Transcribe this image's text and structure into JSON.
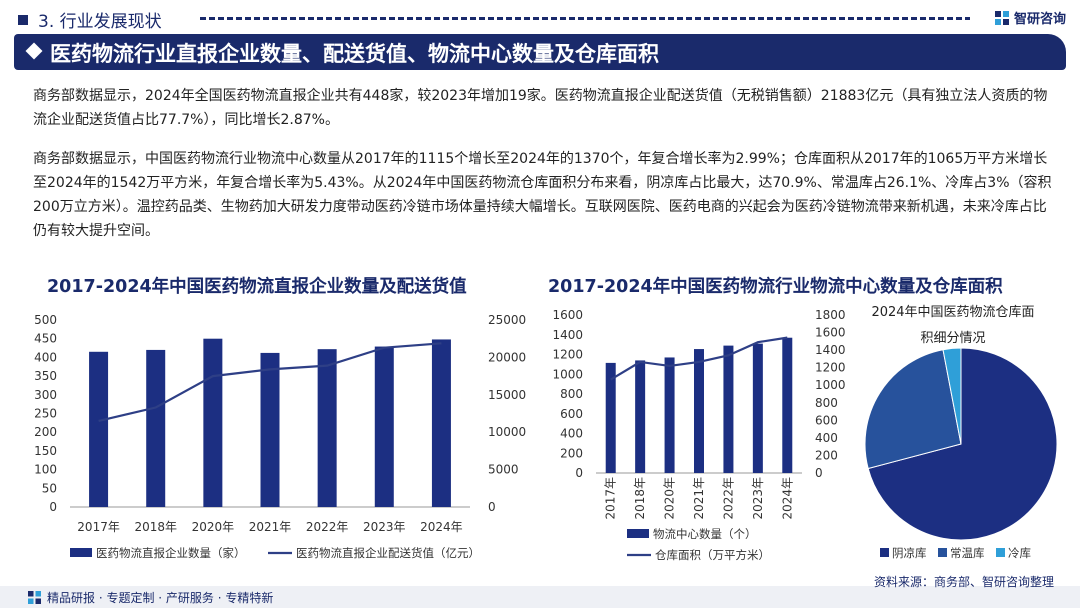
{
  "header": {
    "section_title": "3. 行业发展现状",
    "brand": "智研咨询",
    "banner_title": "医药物流行业直报企业数量、配送货值、物流中心数量及仓库面积"
  },
  "paragraphs": {
    "p1": "商务部数据显示，2024年全国医药物流直报企业共有448家，较2023年增加19家。医药物流直报企业配送货值（无税销售额）21883亿元（具有独立法人资质的物流企业配送货值占比77.7%），同比增长2.87%。",
    "p2": "商务部数据显示，中国医药物流行业物流中心数量从2017年的1115个增长至2024年的1370个，年复合增长率为2.99%；仓库面积从2017年的1065万平方米增长至2024年的1542万平方米，年复合增长率为5.43%。从2024年中国医药物流仓库面积分布来看，阴凉库占比最大，达70.9%、常温库占26.1%、冷库占3%（容积200万立方米）。温控药品类、生物药加大研发力度带动医药冷链市场体量持续大幅增长。互联网医院、医药电商的兴起会为医药冷链物流带来新机遇，未来冷库占比仍有较大提升空间。"
  },
  "colors": {
    "navy": "#1a2a6b",
    "bar": "#1c2f82",
    "line": "#2e3f86",
    "mid": "#27529c",
    "light": "#2f9fd8"
  },
  "chart_data": [
    {
      "type": "bar+line",
      "title": "2017-2024年中国医药物流直报企业数量及配送货值",
      "categories": [
        "2017年",
        "2018年",
        "2020年",
        "2021年",
        "2022年",
        "2023年",
        "2024年"
      ],
      "series": [
        {
          "name": "医药物流直报企业数量（家）",
          "kind": "bar",
          "axis": "left",
          "values": [
            415,
            420,
            450,
            412,
            422,
            429,
            448
          ]
        },
        {
          "name": "医药物流直报企业配送货值（亿元）",
          "kind": "line",
          "axis": "right",
          "values": [
            11500,
            13300,
            17500,
            18400,
            18900,
            21300,
            21883
          ]
        }
      ],
      "y_left": {
        "min": 0,
        "max": 500,
        "ticks": [
          "0",
          "50",
          "100",
          "150",
          "200",
          "250",
          "300",
          "350",
          "400",
          "450",
          "500"
        ]
      },
      "y_right": {
        "min": 0,
        "max": 25000,
        "ticks": [
          "0",
          "5000",
          "10000",
          "15000",
          "20000",
          "25000"
        ]
      },
      "legend": "bottom"
    },
    {
      "type": "bar+line",
      "title": "2017-2024年中国医药物流行业物流中心数量及仓库面积",
      "categories": [
        "2017年",
        "2018年",
        "2020年",
        "2021年",
        "2022年",
        "2023年",
        "2024年"
      ],
      "series": [
        {
          "name": "物流中心数量（个）",
          "kind": "bar",
          "axis": "left",
          "values": [
            1115,
            1140,
            1170,
            1255,
            1290,
            1310,
            1370
          ]
        },
        {
          "name": "仓库面积（万平方米）",
          "kind": "line",
          "axis": "right",
          "values": [
            1065,
            1265,
            1220,
            1265,
            1340,
            1490,
            1542
          ]
        }
      ],
      "y_left": {
        "min": 0,
        "max": 1600,
        "ticks": [
          "0",
          "200",
          "400",
          "600",
          "800",
          "1000",
          "1200",
          "1400",
          "1600"
        ]
      },
      "y_right": {
        "min": 0,
        "max": 1800,
        "ticks": [
          "0",
          "200",
          "400",
          "600",
          "800",
          "1000",
          "1200",
          "1400",
          "1600",
          "1800"
        ]
      },
      "legend": "bottom"
    },
    {
      "type": "pie",
      "title_line1": "2024年中国医药物流仓库面",
      "title_line2": "积细分情况",
      "labels": [
        "阴凉库",
        "常温库",
        "冷库"
      ],
      "values": [
        70.9,
        26.1,
        3.0
      ],
      "colors": [
        "#1c2f82",
        "#27529c",
        "#2f9fd8"
      ],
      "legend": "bottom"
    }
  ],
  "footer": {
    "tags": "精品研报 · 专题定制 · 产研服务 · 专精特新",
    "source": "资料来源：商务部、智研咨询整理"
  }
}
